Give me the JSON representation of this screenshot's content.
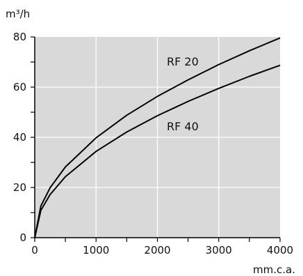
{
  "chart_data": {
    "type": "line",
    "title": "",
    "xlabel": "mm.c.a.",
    "ylabel": "m³/h",
    "xlim": [
      0,
      4000
    ],
    "ylim": [
      0,
      80
    ],
    "x_major_ticks": [
      0,
      1000,
      2000,
      3000,
      4000
    ],
    "x_tick_labels": [
      "0",
      "1000",
      "2000",
      "3000",
      "4000"
    ],
    "y_major_ticks": [
      0,
      20,
      40,
      60,
      80
    ],
    "y_tick_labels": [
      "0",
      "20",
      "40",
      "60",
      "80"
    ],
    "grid": true,
    "legend": "none (series labelled directly on chart)",
    "background_color": "#d9d9d9",
    "grid_color": "#ffffff",
    "line_color": "#000000",
    "series": [
      {
        "name": "RF 20",
        "x": [
          0,
          100,
          250,
          500,
          1000,
          1500,
          2000,
          2500,
          3000,
          3500,
          4000
        ],
        "y": [
          0,
          12.6,
          19.9,
          28.2,
          39.8,
          48.8,
          56.3,
          62.9,
          69.0,
          74.5,
          79.6
        ]
      },
      {
        "name": "RF 40",
        "x": [
          0,
          100,
          250,
          500,
          1000,
          1500,
          2000,
          2500,
          3000,
          3500,
          4000
        ],
        "y": [
          0,
          10.9,
          17.2,
          24.3,
          34.4,
          42.1,
          48.6,
          54.3,
          59.5,
          64.3,
          68.7
        ]
      }
    ]
  }
}
